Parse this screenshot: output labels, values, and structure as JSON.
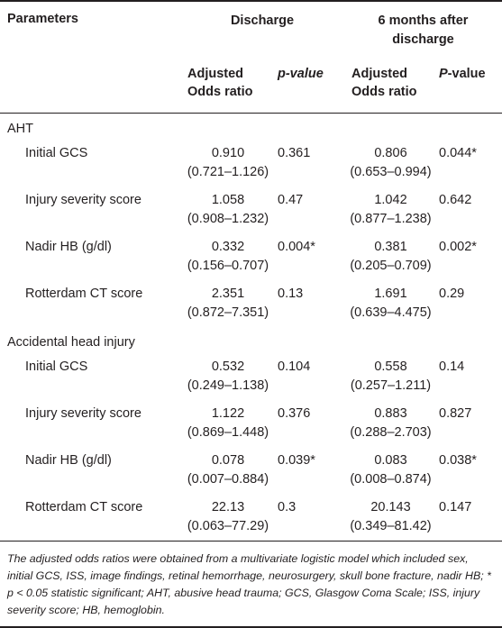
{
  "header": {
    "parameters": "Parameters",
    "discharge": "Discharge",
    "six_months_line1": "6 months after",
    "six_months_line2": "discharge",
    "adjusted_line1": "Adjusted",
    "adjusted_line2": "Odds ratio",
    "pvalue_lower": "p-value",
    "pvalue_upper_p": "P",
    "pvalue_upper_rest": "-value"
  },
  "sections": [
    {
      "title": "AHT",
      "rows": [
        {
          "name": "Initial GCS",
          "d_or": "0.910",
          "d_ci": "(0.721–1.126)",
          "d_p": "0.361",
          "m_or": "0.806",
          "m_ci": "(0.653–0.994)",
          "m_p": "0.044*"
        },
        {
          "name": "Injury severity score",
          "d_or": "1.058",
          "d_ci": "(0.908–1.232)",
          "d_p": "0.47",
          "m_or": "1.042",
          "m_ci": "(0.877–1.238)",
          "m_p": "0.642"
        },
        {
          "name": "Nadir HB (g/dl)",
          "d_or": "0.332",
          "d_ci": "(0.156–0.707)",
          "d_p": "0.004*",
          "m_or": "0.381",
          "m_ci": "(0.205–0.709)",
          "m_p": "0.002*"
        },
        {
          "name": "Rotterdam CT score",
          "d_or": "2.351",
          "d_ci": "(0.872–7.351)",
          "d_p": "0.13",
          "m_or": "1.691",
          "m_ci": "(0.639–4.475)",
          "m_p": "0.29"
        }
      ]
    },
    {
      "title": "Accidental head injury",
      "rows": [
        {
          "name": "Initial GCS",
          "d_or": "0.532",
          "d_ci": "(0.249–1.138)",
          "d_p": "0.104",
          "m_or": "0.558",
          "m_ci": "(0.257–1.211)",
          "m_p": "0.14"
        },
        {
          "name": "Injury severity score",
          "d_or": "1.122",
          "d_ci": "(0.869–1.448)",
          "d_p": "0.376",
          "m_or": "0.883",
          "m_ci": "(0.288–2.703)",
          "m_p": "0.827"
        },
        {
          "name": "Nadir HB (g/dl)",
          "d_or": "0.078",
          "d_ci": "(0.007–0.884)",
          "d_p": "0.039*",
          "m_or": "0.083",
          "m_ci": "(0.008–0.874)",
          "m_p": "0.038*"
        },
        {
          "name": "Rotterdam CT score",
          "d_or": "22.13",
          "d_ci": "(0.063–77.29)",
          "d_p": "0.3",
          "m_or": "20.143",
          "m_ci": "(0.349–81.42)",
          "m_p": "0.147"
        }
      ]
    }
  ],
  "footnote": "The adjusted odds ratios were obtained from a multivariate logistic model which included sex, initial GCS, ISS, image findings, retinal hemorrhage, neurosurgery, skull bone fracture, nadir HB; * p < 0.05 statistic significant; AHT, abusive head trauma; GCS, Glasgow Coma Scale; ISS, injury severity score; HB, hemoglobin."
}
